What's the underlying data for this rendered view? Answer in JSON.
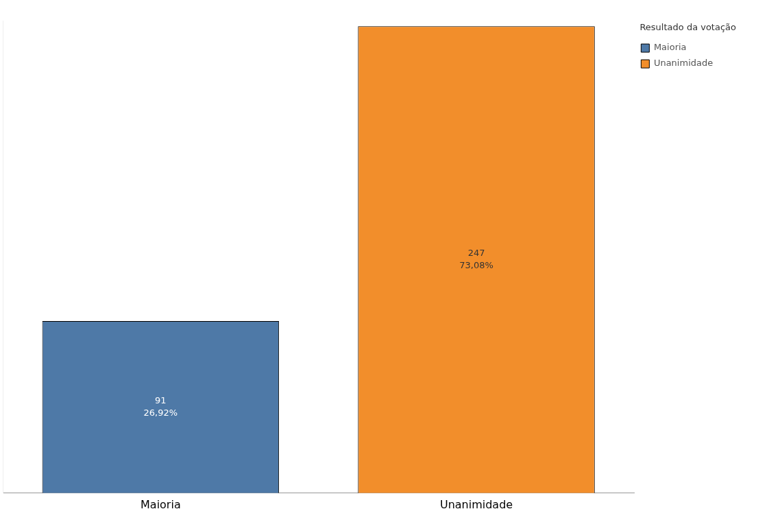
{
  "chart_data": {
    "type": "bar",
    "categories": [
      "Maioria",
      "Unanimidade"
    ],
    "series": [
      {
        "name": "Maioria",
        "color": "#4e79a7",
        "values": [
          91,
          null
        ],
        "value_labels": [
          "91\n26,92%",
          null
        ]
      },
      {
        "name": "Unanimidade",
        "color": "#f28e2b",
        "values": [
          null,
          247
        ],
        "value_labels": [
          null,
          "247\n73,08%"
        ]
      }
    ],
    "legend": "top right",
    "legend_title": "Resultado da votação",
    "grid": false
  }
}
